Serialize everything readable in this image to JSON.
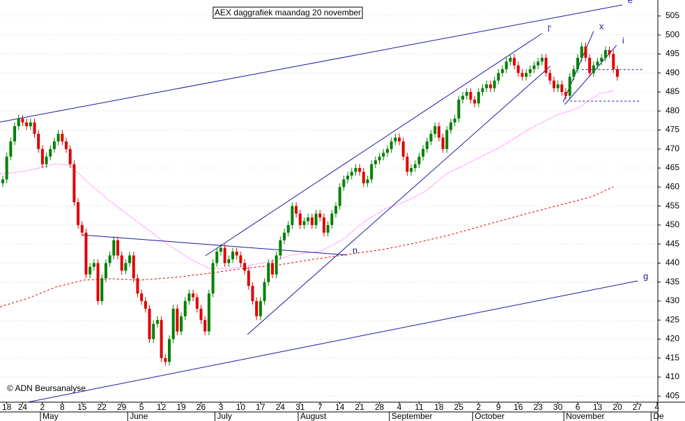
{
  "chart_data": {
    "type": "candlestick",
    "title": "AEX daggrafiek maandag 20 november",
    "credit": "© ADN Beursanalyse",
    "up_color": "#008000",
    "down_color": "#e00000",
    "xlim": [
      -0.7,
      165.2
    ],
    "ylim": [
      403.4,
      509.2
    ],
    "yticks": [
      405,
      410,
      415,
      420,
      425,
      430,
      435,
      440,
      445,
      450,
      455,
      460,
      465,
      470,
      475,
      480,
      485,
      490,
      495,
      500,
      505
    ],
    "grid": true,
    "xticks": [
      {
        "value": 1,
        "label": "18"
      },
      {
        "value": 5,
        "label": "24"
      },
      {
        "value": 10,
        "label": "2"
      },
      {
        "value": 15,
        "label": "8"
      },
      {
        "value": 20,
        "label": "15"
      },
      {
        "value": 25,
        "label": "22"
      },
      {
        "value": 30,
        "label": "29"
      },
      {
        "value": 35,
        "label": "5"
      },
      {
        "value": 40,
        "label": "12"
      },
      {
        "value": 45,
        "label": "19"
      },
      {
        "value": 50,
        "label": "26"
      },
      {
        "value": 55,
        "label": "3"
      },
      {
        "value": 60,
        "label": "10"
      },
      {
        "value": 65,
        "label": "17"
      },
      {
        "value": 70,
        "label": "24"
      },
      {
        "value": 75,
        "label": "31"
      },
      {
        "value": 80,
        "label": "7"
      },
      {
        "value": 85,
        "label": "14"
      },
      {
        "value": 90,
        "label": "21"
      },
      {
        "value": 95,
        "label": "28"
      },
      {
        "value": 100,
        "label": "4"
      },
      {
        "value": 105,
        "label": "11"
      },
      {
        "value": 110,
        "label": "18"
      },
      {
        "value": 115,
        "label": "25"
      },
      {
        "value": 120,
        "label": "2"
      },
      {
        "value": 125,
        "label": "9"
      },
      {
        "value": 130,
        "label": "16"
      },
      {
        "value": 135,
        "label": "23"
      },
      {
        "value": 140,
        "label": "30"
      },
      {
        "value": 145,
        "label": "6"
      },
      {
        "value": 150,
        "label": "13"
      },
      {
        "value": 155,
        "label": "20"
      },
      {
        "value": 160,
        "label": "27"
      },
      {
        "value": 165,
        "label": "4"
      }
    ],
    "months": [
      {
        "value": 9.5,
        "label": "May"
      },
      {
        "value": 31.5,
        "label": "June"
      },
      {
        "value": 53.5,
        "label": "July"
      },
      {
        "value": 74.5,
        "label": "August"
      },
      {
        "value": 97.5,
        "label": "September"
      },
      {
        "value": 118.5,
        "label": "October"
      },
      {
        "value": 141.5,
        "label": "November"
      },
      {
        "value": 163.5,
        "label": "De"
      }
    ],
    "x": [
      0,
      1,
      2,
      3,
      4,
      5,
      6,
      7,
      8,
      9,
      10,
      11,
      12,
      13,
      14,
      15,
      16,
      17,
      18,
      19,
      20,
      21,
      22,
      23,
      24,
      25,
      26,
      27,
      28,
      29,
      30,
      31,
      32,
      33,
      34,
      35,
      36,
      37,
      38,
      39,
      40,
      41,
      42,
      43,
      44,
      45,
      46,
      47,
      48,
      49,
      50,
      51,
      52,
      53,
      54,
      55,
      56,
      57,
      58,
      59,
      60,
      61,
      62,
      63,
      64,
      65,
      66,
      67,
      68,
      69,
      70,
      71,
      72,
      73,
      74,
      75,
      76,
      77,
      78,
      79,
      80,
      81,
      82,
      83,
      84,
      85,
      86,
      87,
      88,
      89,
      90,
      91,
      92,
      93,
      94,
      95,
      96,
      97,
      98,
      99,
      100,
      101,
      102,
      103,
      104,
      105,
      106,
      107,
      108,
      109,
      110,
      111,
      112,
      113,
      114,
      115,
      116,
      117,
      118,
      119,
      120,
      121,
      122,
      123,
      124,
      125,
      126,
      127,
      128,
      129,
      130,
      131,
      132,
      133,
      134,
      135,
      136,
      137,
      138,
      139,
      140,
      141,
      142,
      143,
      144,
      145,
      146,
      147,
      148,
      149,
      150,
      151,
      152,
      153,
      154,
      155
    ],
    "open": [
      461,
      462,
      468,
      472,
      476,
      478,
      477,
      476,
      477,
      474,
      470,
      466,
      468,
      470,
      472,
      474,
      472,
      470,
      466,
      456,
      450,
      448,
      437,
      439,
      440,
      430,
      436,
      440,
      442,
      446,
      442,
      438,
      440,
      442,
      436,
      432,
      430,
      428,
      420,
      424,
      425,
      415,
      414,
      420,
      428,
      422,
      426,
      430,
      432,
      431,
      428,
      425,
      422,
      432,
      440,
      443,
      444,
      440,
      441,
      443,
      442,
      440,
      438,
      434,
      430,
      426,
      430,
      435,
      440,
      437,
      442,
      446,
      448,
      450,
      455,
      453,
      450,
      451,
      452,
      450,
      453,
      452,
      448,
      450,
      453,
      455,
      460,
      462,
      463,
      464,
      465,
      464,
      461,
      462,
      466,
      467,
      468,
      469,
      470,
      472,
      473,
      472,
      468,
      464,
      465,
      466,
      468,
      470,
      472,
      474,
      476,
      473,
      470,
      475,
      477,
      478,
      483,
      484,
      485,
      483,
      482,
      485,
      486,
      487,
      486,
      488,
      490,
      491,
      493,
      494,
      492,
      490,
      489,
      490,
      491,
      492,
      493,
      494,
      490,
      488,
      486,
      487,
      485,
      484,
      489,
      491,
      494,
      497,
      494,
      490,
      492,
      493,
      494,
      496,
      495,
      491
    ],
    "high": [
      463,
      469,
      473,
      477,
      479,
      479,
      478,
      478,
      478,
      475,
      471,
      469,
      471,
      473,
      475,
      475,
      473,
      471,
      467,
      457,
      451,
      449,
      440,
      441,
      441,
      437,
      441,
      443,
      447,
      447,
      443,
      441,
      443,
      443,
      437,
      433,
      431,
      429,
      425,
      426,
      426,
      416,
      421,
      429,
      429,
      427,
      431,
      433,
      433,
      432,
      429,
      426,
      433,
      441,
      444,
      445,
      445,
      442,
      444,
      444,
      443,
      441,
      439,
      435,
      431,
      431,
      436,
      441,
      441,
      443,
      447,
      449,
      451,
      456,
      456,
      454,
      452,
      453,
      453,
      454,
      454,
      453,
      451,
      454,
      456,
      461,
      463,
      464,
      465,
      466,
      466,
      465,
      463,
      467,
      468,
      469,
      470,
      471,
      473,
      474,
      474,
      473,
      469,
      466,
      467,
      469,
      471,
      473,
      475,
      477,
      477,
      474,
      476,
      478,
      479,
      484,
      485,
      486,
      486,
      484,
      486,
      487,
      488,
      488,
      489,
      491,
      492,
      494,
      495,
      495,
      493,
      491,
      491,
      492,
      493,
      494,
      495,
      495,
      491,
      489,
      488,
      488,
      486,
      490,
      492,
      495,
      498,
      498,
      495,
      493,
      494,
      495,
      497,
      497,
      496,
      492
    ],
    "low": [
      460,
      461,
      467,
      471,
      475,
      476,
      475,
      475,
      473,
      469,
      465,
      465,
      467,
      469,
      471,
      471,
      469,
      465,
      455,
      449,
      447,
      436,
      436,
      438,
      429,
      429,
      435,
      439,
      441,
      441,
      437,
      437,
      439,
      435,
      431,
      429,
      427,
      419,
      419,
      423,
      414,
      413,
      413,
      419,
      421,
      421,
      425,
      429,
      430,
      427,
      424,
      421,
      421,
      431,
      439,
      442,
      439,
      439,
      440,
      441,
      439,
      437,
      433,
      429,
      425,
      425,
      429,
      434,
      436,
      436,
      441,
      445,
      447,
      449,
      452,
      449,
      449,
      450,
      449,
      449,
      451,
      447,
      447,
      449,
      452,
      454,
      459,
      461,
      462,
      463,
      463,
      460,
      460,
      461,
      465,
      466,
      467,
      468,
      469,
      471,
      471,
      467,
      463,
      463,
      464,
      465,
      467,
      469,
      471,
      473,
      472,
      469,
      469,
      474,
      476,
      477,
      482,
      483,
      482,
      481,
      481,
      484,
      485,
      485,
      485,
      487,
      489,
      490,
      492,
      491,
      489,
      488,
      488,
      489,
      490,
      491,
      492,
      489,
      487,
      485,
      485,
      484,
      483,
      483,
      488,
      490,
      493,
      493,
      489,
      489,
      491,
      492,
      493,
      494,
      490,
      488
    ],
    "close": [
      462,
      468,
      472,
      476,
      478,
      477,
      476,
      477,
      474,
      470,
      466,
      468,
      470,
      472,
      474,
      472,
      470,
      466,
      456,
      450,
      448,
      437,
      439,
      440,
      430,
      436,
      440,
      442,
      446,
      442,
      438,
      440,
      442,
      436,
      432,
      430,
      428,
      420,
      424,
      425,
      415,
      414,
      420,
      428,
      422,
      426,
      430,
      432,
      431,
      428,
      425,
      422,
      432,
      440,
      443,
      444,
      440,
      441,
      443,
      442,
      440,
      438,
      434,
      430,
      426,
      430,
      435,
      440,
      437,
      442,
      446,
      448,
      450,
      455,
      453,
      450,
      451,
      452,
      450,
      453,
      452,
      448,
      450,
      453,
      455,
      460,
      462,
      463,
      464,
      465,
      464,
      461,
      462,
      466,
      467,
      468,
      469,
      470,
      472,
      473,
      472,
      468,
      464,
      465,
      466,
      468,
      470,
      472,
      474,
      476,
      473,
      470,
      475,
      477,
      478,
      483,
      484,
      485,
      483,
      482,
      485,
      486,
      487,
      486,
      488,
      490,
      491,
      493,
      494,
      492,
      490,
      489,
      490,
      491,
      492,
      493,
      494,
      490,
      488,
      486,
      487,
      485,
      484,
      489,
      491,
      494,
      497,
      494,
      490,
      492,
      493,
      494,
      496,
      495,
      491,
      489
    ],
    "overlays": [
      {
        "color": "#ff00ff",
        "style": "dotted",
        "x": [
          -0.7,
          6.3,
          13.4,
          16.9,
          22.1,
          27.4,
          34.4,
          41.5,
          46.7,
          52.0,
          57.3,
          62.6,
          67.8,
          73.1,
          80.1,
          85.4,
          90.7,
          96.0,
          101.2,
          106.5,
          111.8,
          118.8,
          125.8,
          132.9,
          139.9,
          145.2,
          150.4,
          154.0
        ],
        "values": [
          463.4,
          464.3,
          466.1,
          465.8,
          460.6,
          456.0,
          450.5,
          445.0,
          441.4,
          438.6,
          438.6,
          439.5,
          440.4,
          442.2,
          443.1,
          445.9,
          450.5,
          454.1,
          456.0,
          458.8,
          463.4,
          467.0,
          470.7,
          475.3,
          479.0,
          480.8,
          484.5,
          485.4
        ]
      },
      {
        "color": "#dd0000",
        "style": "dashed",
        "x": [
          -0.7,
          6.3,
          13.4,
          20.4,
          27.4,
          34.4,
          43.2,
          52.0,
          60.8,
          69.6,
          78.4,
          87.2,
          96.0,
          104.7,
          113.5,
          122.3,
          131.1,
          139.9,
          148.7,
          154.0
        ],
        "values": [
          428.5,
          430.7,
          433.7,
          435.5,
          435.9,
          435.5,
          436.2,
          437.3,
          438.6,
          439.5,
          441.0,
          442.3,
          443.6,
          445.4,
          447.6,
          450.2,
          452.7,
          455.1,
          457.5,
          460.1
        ]
      }
    ],
    "lines": [
      {
        "label": "e",
        "color": "#1a1aa0",
        "x": [
          -0.7,
          156.2
        ],
        "values": [
          477.1,
          507.9
        ]
      },
      {
        "label": "g",
        "color": "#1a1aa0",
        "x": [
          6.3,
          160.1
        ],
        "values": [
          403.4,
          435.3
        ]
      },
      {
        "label": "l'",
        "color": "#1a1aa0",
        "x": [
          51.1,
          136.0
        ],
        "values": [
          441.9,
          500.4
        ]
      },
      {
        "color": "#1a1aa0",
        "x": [
          61.7,
          138.1
        ],
        "values": [
          421.2,
          491.8
        ]
      },
      {
        "label": "n",
        "color": "#1a1aa0",
        "x": [
          20.0,
          86.8
        ],
        "values": [
          447.4,
          442.1
        ]
      },
      {
        "label": "x",
        "color": "#1a1aa0",
        "x": [
          141.3,
          149.0
        ],
        "values": [
          482.3,
          501.0
        ]
      },
      {
        "label": "i",
        "color": "#1a1aa0",
        "x": [
          141.7,
          154.8
        ],
        "values": [
          481.7,
          497.3
        ]
      },
      {
        "color": "#1a1aa0",
        "style": "dashed",
        "x": [
          146.0,
          161.3
        ],
        "values": [
          490.9,
          490.9
        ]
      },
      {
        "color": "#1a1aa0",
        "style": "dashed",
        "x": [
          143.1,
          160.6
        ],
        "values": [
          482.6,
          482.6
        ]
      }
    ]
  }
}
